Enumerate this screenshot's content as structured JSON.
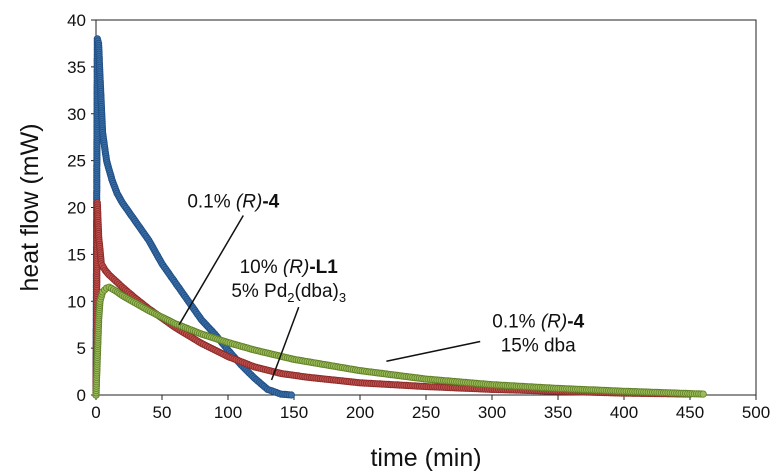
{
  "chart_data": {
    "type": "scatter",
    "xlabel": "time (min)",
    "ylabel": "heat flow (mW)",
    "xlim": [
      0,
      500
    ],
    "ylim": [
      0,
      40
    ],
    "xticks": [
      0,
      50,
      100,
      150,
      200,
      250,
      300,
      350,
      400,
      450,
      500
    ],
    "yticks": [
      0,
      5,
      10,
      15,
      20,
      25,
      30,
      35,
      40
    ],
    "grid": false,
    "legend": "none",
    "series": [
      {
        "color": "#3a6ea5",
        "edge": "#1f4e86",
        "x": [
          0,
          1,
          2,
          3,
          5,
          8,
          12,
          16,
          20,
          25,
          30,
          40,
          50,
          60,
          70,
          80,
          90,
          100,
          110,
          120,
          130,
          140,
          148
        ],
        "y": [
          0,
          38,
          37.5,
          34,
          28,
          25,
          23,
          21.5,
          20.5,
          19.5,
          18.5,
          16.5,
          14,
          12,
          10,
          8,
          6.5,
          4.8,
          3.2,
          1.8,
          0.6,
          0.1,
          0
        ]
      },
      {
        "color": "#c0504d",
        "edge": "#8b2a28",
        "x": [
          0,
          1,
          2,
          4,
          7,
          10,
          20,
          30,
          40,
          50,
          60,
          80,
          100,
          120,
          140,
          160,
          180,
          200,
          250,
          300,
          350,
          400,
          450
        ],
        "y": [
          0,
          20.5,
          17,
          14,
          13.3,
          12.8,
          11.5,
          10.3,
          9.2,
          8.2,
          7.2,
          5.5,
          4.1,
          3,
          2.3,
          1.9,
          1.6,
          1.3,
          0.9,
          0.6,
          0.4,
          0.2,
          0.1
        ]
      },
      {
        "color": "#9bbb59",
        "edge": "#5f7f26",
        "x": [
          0,
          1,
          2,
          3,
          5,
          8,
          10,
          15,
          20,
          30,
          40,
          50,
          60,
          80,
          100,
          120,
          150,
          200,
          250,
          300,
          350,
          400,
          460
        ],
        "y": [
          0,
          4,
          8,
          10,
          11,
          11.4,
          11.5,
          11.1,
          10.6,
          9.8,
          9,
          8.3,
          7.6,
          6.5,
          5.6,
          4.8,
          3.8,
          2.6,
          1.7,
          1.1,
          0.7,
          0.4,
          0.1
        ]
      }
    ],
    "annotations": [
      {
        "x": 104,
        "y": 20,
        "text_plain": "0.1% ",
        "text_italic": "(R)",
        "text_bold_plain": "-",
        "text_bold": "4",
        "line_to": [
          63,
          7.5
        ]
      },
      {
        "x": 146,
        "y": 13,
        "l1_plain": "10% ",
        "l1_italic": "(R)",
        "l1_mid": "-",
        "l1_bold": "L1",
        "l2": "5% Pd",
        "l2_sub1": "2",
        "l2_mid": "(dba)",
        "l2_sub2": "3",
        "line_to": [
          133,
          1.6
        ]
      },
      {
        "x": 335,
        "y": 7.2,
        "l1_plain": "0.1% ",
        "l1_italic": "(R)",
        "l1_mid": "-",
        "l1_bold": "4",
        "l2": "15% dba",
        "line_to": [
          220,
          3.6
        ]
      }
    ]
  }
}
